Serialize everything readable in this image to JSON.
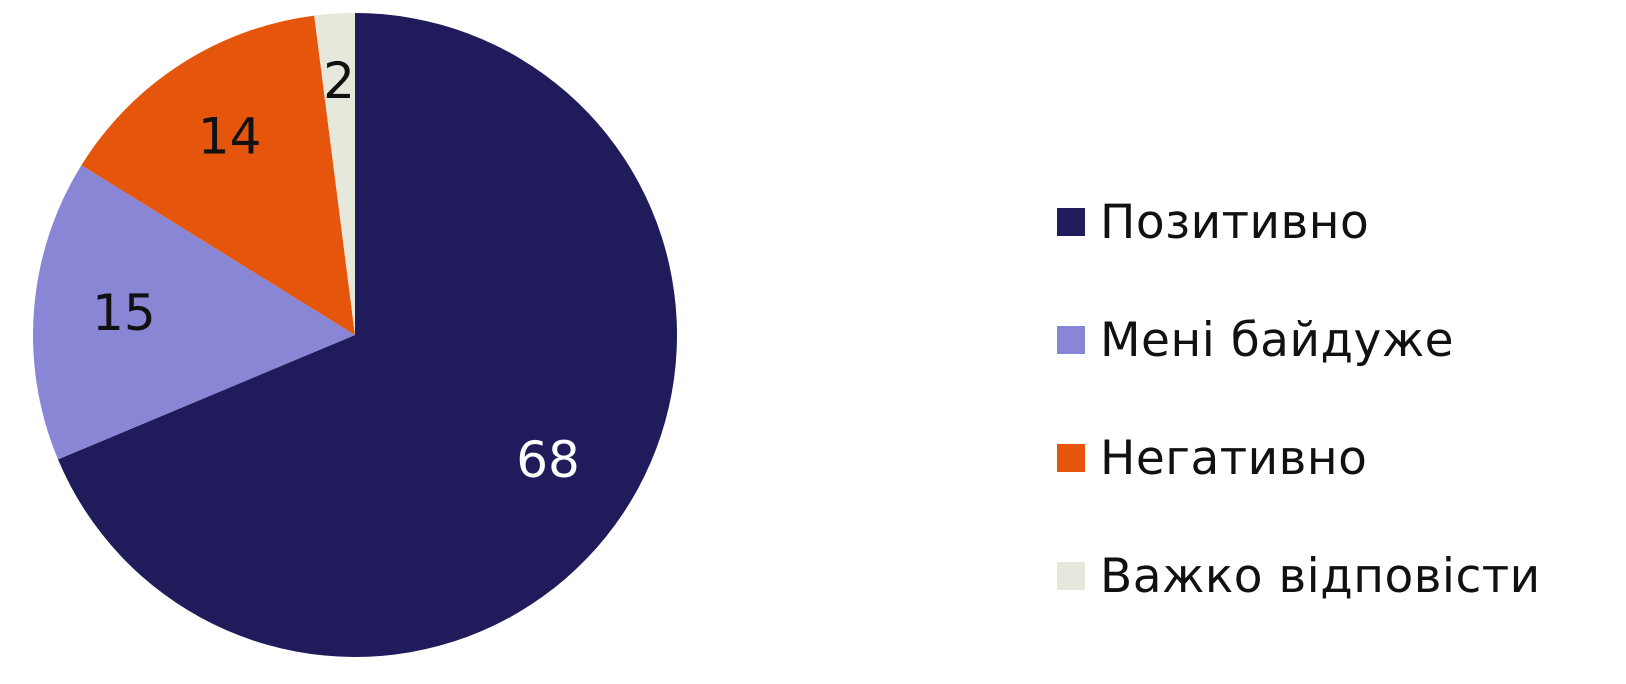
{
  "chart_data": {
    "type": "pie",
    "title": "",
    "start_angle": "12 o'clock",
    "direction": "clockwise",
    "legend_position": "right",
    "slices": [
      {
        "label": "Позитивно",
        "value": 68,
        "color": "#201c5c",
        "label_color": "#ffffff"
      },
      {
        "label": "Мені байдуже",
        "value": 15,
        "color": "#8a86d6",
        "label_color": "#111111"
      },
      {
        "label": "Негативно",
        "value": 14,
        "color": "#e5560c",
        "label_color": "#111111"
      },
      {
        "label": "Важко відповісти",
        "value": 2,
        "color": "#e7e8dc",
        "label_color": "#111111"
      }
    ]
  }
}
